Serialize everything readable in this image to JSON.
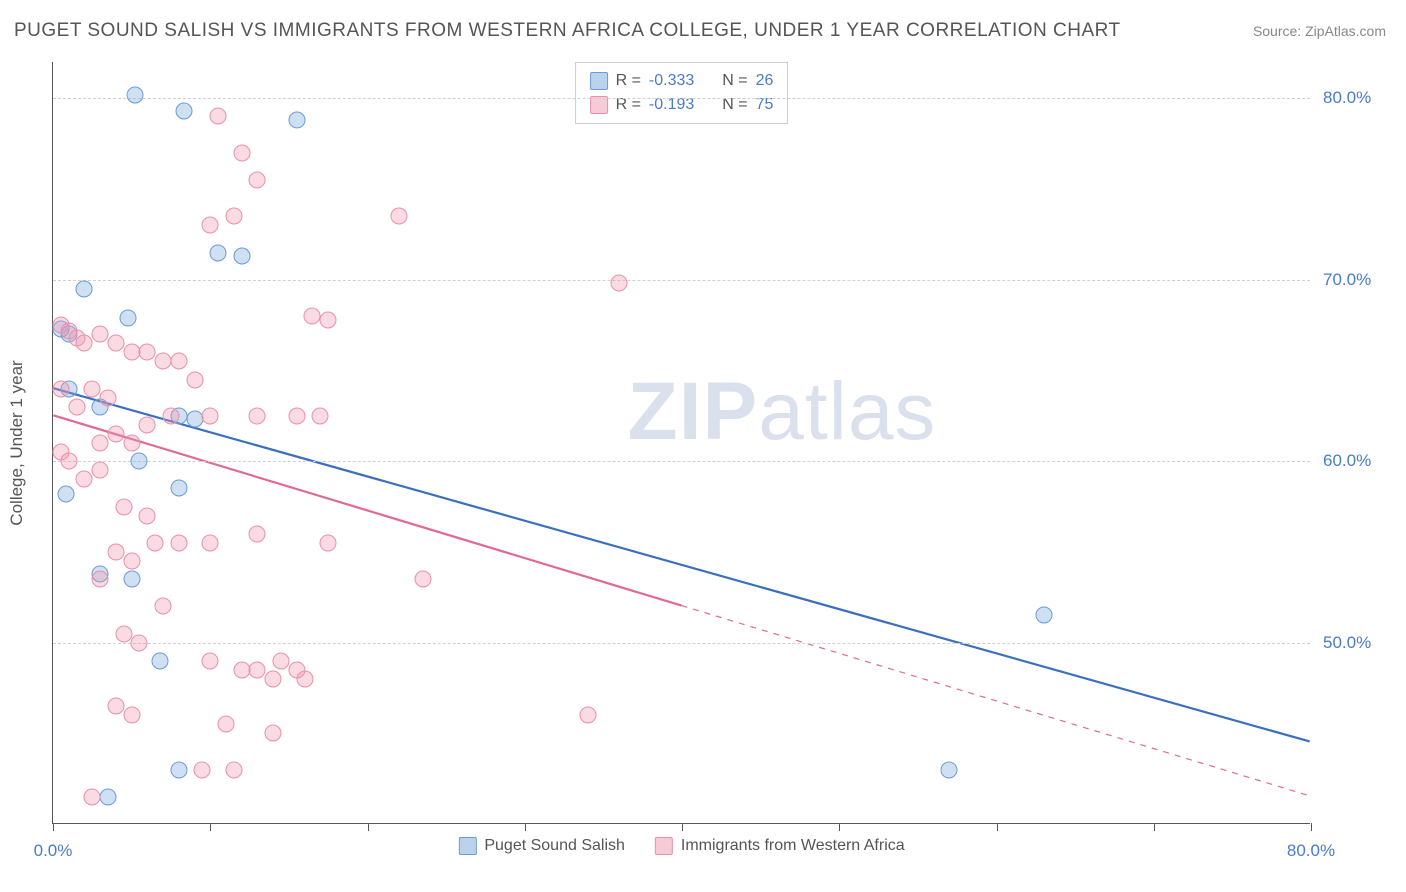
{
  "header": {
    "title": "PUGET SOUND SALISH VS IMMIGRANTS FROM WESTERN AFRICA COLLEGE, UNDER 1 YEAR CORRELATION CHART",
    "source_label": "Source: ZipAtlas.com"
  },
  "watermark": {
    "part1": "ZIP",
    "part2": "atlas"
  },
  "chart": {
    "type": "scatter",
    "background_color": "#ffffff",
    "grid_color": "#d0d0d0",
    "axis_color": "#555555",
    "y_axis_title": "College, Under 1 year",
    "xlim": [
      0,
      80
    ],
    "ylim": [
      40,
      82
    ],
    "ytick_positions": [
      50,
      60,
      70,
      80
    ],
    "ytick_labels": [
      "50.0%",
      "60.0%",
      "70.0%",
      "80.0%"
    ],
    "xtick_positions": [
      0,
      10,
      20,
      30,
      40,
      50,
      60,
      70,
      80
    ],
    "xtick_labels_shown": {
      "0": "0.0%",
      "80": "80.0%"
    },
    "label_fontsize": 17,
    "label_color": "#4a7bc8",
    "marker_size": 17,
    "series": [
      {
        "name": "Puget Sound Salish",
        "color_fill": "rgba(120,165,220,0.35)",
        "color_border": "#6a9bd8",
        "trend_color": "#3a6fc0",
        "trend_width": 2.2,
        "R": "-0.333",
        "N": "26",
        "trend": {
          "x1": 0,
          "y1": 64.0,
          "x2": 80,
          "y2": 44.5,
          "dash_from_x": null
        },
        "points": [
          [
            5.2,
            80.2
          ],
          [
            8.3,
            79.3
          ],
          [
            15.5,
            78.8
          ],
          [
            2.0,
            69.5
          ],
          [
            4.8,
            67.9
          ],
          [
            0.5,
            67.3
          ],
          [
            1.0,
            67.0
          ],
          [
            10.5,
            71.5
          ],
          [
            12.0,
            71.3
          ],
          [
            1.0,
            64.0
          ],
          [
            3.0,
            63.0
          ],
          [
            8.0,
            62.5
          ],
          [
            9.0,
            62.3
          ],
          [
            0.8,
            58.2
          ],
          [
            5.5,
            60.0
          ],
          [
            8.0,
            58.5
          ],
          [
            3.0,
            53.8
          ],
          [
            5.0,
            53.5
          ],
          [
            6.8,
            49.0
          ],
          [
            8.0,
            43.0
          ],
          [
            3.5,
            41.5
          ],
          [
            63.0,
            51.5
          ],
          [
            57.0,
            43.0
          ]
        ]
      },
      {
        "name": "Immigrants from Western Africa",
        "color_fill": "rgba(240,150,175,0.35)",
        "color_border": "#e890aa",
        "trend_color": "#e06a95",
        "trend_width": 2.2,
        "R": "-0.193",
        "N": "75",
        "trend": {
          "x1": 0,
          "y1": 62.5,
          "x2": 80,
          "y2": 41.5,
          "dash_from_x": 40
        },
        "points": [
          [
            10.5,
            79.0
          ],
          [
            12.0,
            77.0
          ],
          [
            13.0,
            75.5
          ],
          [
            10.0,
            73.0
          ],
          [
            11.5,
            73.5
          ],
          [
            22.0,
            73.5
          ],
          [
            16.5,
            68.0
          ],
          [
            17.5,
            67.8
          ],
          [
            0.5,
            67.5
          ],
          [
            1.0,
            67.2
          ],
          [
            1.5,
            66.8
          ],
          [
            2.0,
            66.5
          ],
          [
            3.0,
            67.0
          ],
          [
            4.0,
            66.5
          ],
          [
            5.0,
            66.0
          ],
          [
            6.0,
            66.0
          ],
          [
            7.0,
            65.5
          ],
          [
            8.0,
            65.5
          ],
          [
            9.0,
            64.5
          ],
          [
            36.0,
            69.8
          ],
          [
            0.5,
            64.0
          ],
          [
            1.5,
            63.0
          ],
          [
            2.5,
            64.0
          ],
          [
            3.5,
            63.5
          ],
          [
            3.0,
            61.0
          ],
          [
            4.0,
            61.5
          ],
          [
            5.0,
            61.0
          ],
          [
            6.0,
            62.0
          ],
          [
            7.5,
            62.5
          ],
          [
            10.0,
            62.5
          ],
          [
            13.0,
            62.5
          ],
          [
            15.5,
            62.5
          ],
          [
            17.0,
            62.5
          ],
          [
            0.5,
            60.5
          ],
          [
            1.0,
            60.0
          ],
          [
            2.0,
            59.0
          ],
          [
            3.0,
            59.5
          ],
          [
            4.5,
            57.5
          ],
          [
            6.0,
            57.0
          ],
          [
            6.5,
            55.5
          ],
          [
            8.0,
            55.5
          ],
          [
            10.0,
            55.5
          ],
          [
            13.0,
            56.0
          ],
          [
            17.5,
            55.5
          ],
          [
            4.0,
            55.0
          ],
          [
            5.0,
            54.5
          ],
          [
            3.0,
            53.5
          ],
          [
            7.0,
            52.0
          ],
          [
            4.5,
            50.5
          ],
          [
            5.5,
            50.0
          ],
          [
            23.5,
            53.5
          ],
          [
            10.0,
            49.0
          ],
          [
            12.0,
            48.5
          ],
          [
            13.0,
            48.5
          ],
          [
            14.0,
            48.0
          ],
          [
            14.5,
            49.0
          ],
          [
            15.5,
            48.5
          ],
          [
            16.0,
            48.0
          ],
          [
            4.0,
            46.5
          ],
          [
            5.0,
            46.0
          ],
          [
            11.0,
            45.5
          ],
          [
            14.0,
            45.0
          ],
          [
            34.0,
            46.0
          ],
          [
            9.5,
            43.0
          ],
          [
            11.5,
            43.0
          ],
          [
            2.5,
            41.5
          ]
        ]
      }
    ],
    "legend_top": {
      "border_color": "#cccccc",
      "rows": [
        {
          "swatch": "blue",
          "r_label": "R =",
          "r_val": "-0.333",
          "n_label": "N =",
          "n_val": "26"
        },
        {
          "swatch": "pink",
          "r_label": "R =",
          "r_val": "-0.193",
          "n_label": "N =",
          "n_val": "75"
        }
      ]
    },
    "legend_bottom": [
      {
        "swatch": "blue",
        "label": "Puget Sound Salish"
      },
      {
        "swatch": "pink",
        "label": "Immigrants from Western Africa"
      }
    ]
  }
}
